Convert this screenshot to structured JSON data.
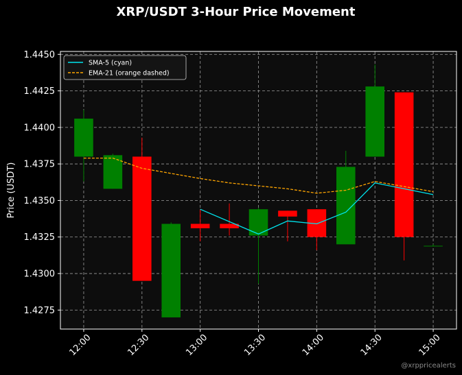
{
  "chart_data": {
    "type": "candlestick",
    "title": "XRP/USDT 3-Hour Price Movement",
    "xlabel": "",
    "ylabel": "Price (USDT)",
    "ylim": [
      1.4262,
      1.4452
    ],
    "xlim": [
      "11:48",
      "15:12"
    ],
    "yticks": [
      "1.4275",
      "1.4300",
      "1.4325",
      "1.4350",
      "1.4375",
      "1.4400",
      "1.4425",
      "1.4450"
    ],
    "xticks": [
      "12:00",
      "12:30",
      "13:00",
      "13:30",
      "14:00",
      "14:30",
      "15:00"
    ],
    "grid": true,
    "legend_position": "top-left",
    "legend": [
      "SMA-5 (cyan)",
      "EMA-21 (orange dashed)"
    ],
    "watermark": "@xrppricealerts",
    "candles": [
      {
        "time": "12:00",
        "open": 1.438,
        "high": 1.4412,
        "low": 1.4363,
        "close": 1.4406
      },
      {
        "time": "12:15",
        "open": 1.4358,
        "high": 1.4382,
        "low": 1.4358,
        "close": 1.4381
      },
      {
        "time": "12:30",
        "open": 1.438,
        "high": 1.4393,
        "low": 1.4295,
        "close": 1.4295
      },
      {
        "time": "12:45",
        "open": 1.427,
        "high": 1.4335,
        "low": 1.427,
        "close": 1.4334
      },
      {
        "time": "13:00",
        "open": 1.4334,
        "high": 1.4344,
        "low": 1.4322,
        "close": 1.4331
      },
      {
        "time": "13:15",
        "open": 1.4334,
        "high": 1.4348,
        "low": 1.4326,
        "close": 1.4331
      },
      {
        "time": "13:30",
        "open": 1.4326,
        "high": 1.4345,
        "low": 1.4293,
        "close": 1.4344
      },
      {
        "time": "13:45",
        "open": 1.4343,
        "high": 1.4343,
        "low": 1.4322,
        "close": 1.4339
      },
      {
        "time": "14:00",
        "open": 1.4344,
        "high": 1.4344,
        "low": 1.4316,
        "close": 1.4325
      },
      {
        "time": "14:15",
        "open": 1.432,
        "high": 1.4384,
        "low": 1.432,
        "close": 1.4373
      },
      {
        "time": "14:30",
        "open": 1.438,
        "high": 1.4443,
        "low": 1.438,
        "close": 1.4428
      },
      {
        "time": "14:45",
        "open": 1.4424,
        "high": 1.4424,
        "low": 1.4309,
        "close": 1.4325
      },
      {
        "time": "15:00",
        "open": 1.4319,
        "high": 1.432,
        "low": 1.4319,
        "close": 1.4319
      }
    ],
    "series": [
      {
        "name": "SMA-5 (cyan)",
        "color": "#00e5ee",
        "style": "solid",
        "points": [
          [
            "13:00",
            1.4344
          ],
          [
            "13:30",
            1.4327
          ],
          [
            "13:45",
            1.4336
          ],
          [
            "14:00",
            1.4334
          ],
          [
            "14:15",
            1.4342
          ],
          [
            "14:30",
            1.4362
          ],
          [
            "15:00",
            1.4354
          ]
        ]
      },
      {
        "name": "EMA-21 (orange dashed)",
        "color": "#ffa500",
        "style": "dashed",
        "points": [
          [
            "12:00",
            1.4379
          ],
          [
            "12:15",
            1.4379
          ],
          [
            "12:30",
            1.4372
          ],
          [
            "13:00",
            1.4365
          ],
          [
            "13:15",
            1.4362
          ],
          [
            "13:45",
            1.4358
          ],
          [
            "14:00",
            1.4355
          ],
          [
            "14:15",
            1.4357
          ],
          [
            "14:30",
            1.4363
          ],
          [
            "15:00",
            1.4356
          ]
        ]
      }
    ],
    "colors": {
      "up": "#008000",
      "down": "#ff0000",
      "background": "#000000",
      "plot_background": "#0d0d0d",
      "grid": "#8c8c8c",
      "text": "#ffffff"
    }
  }
}
